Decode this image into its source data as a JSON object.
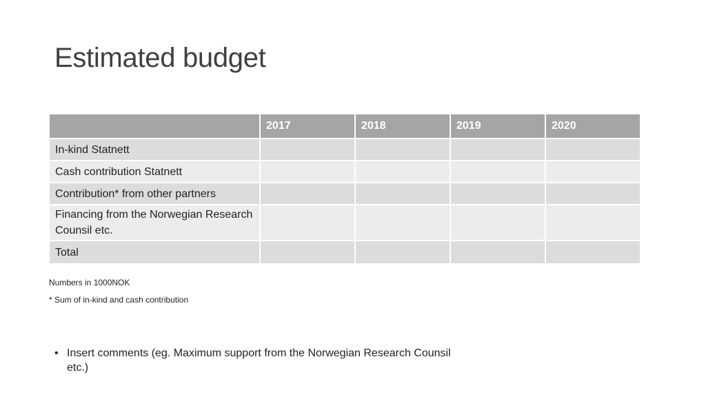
{
  "slide": {
    "title": "Estimated budget"
  },
  "table": {
    "corner": "",
    "years": [
      "2017",
      "2018",
      "2019",
      "2020"
    ],
    "rows": [
      {
        "label": "In-kind Statnett",
        "values": [
          "",
          "",
          "",
          ""
        ]
      },
      {
        "label": "Cash contribution Statnett",
        "values": [
          "",
          "",
          "",
          ""
        ]
      },
      {
        "label": "Contribution* from other partners",
        "values": [
          "",
          "",
          "",
          ""
        ]
      },
      {
        "label": "Financing from the Norwegian Research Counsil etc.",
        "values": [
          "",
          "",
          "",
          ""
        ]
      },
      {
        "label": "Total",
        "values": [
          "",
          "",
          "",
          ""
        ]
      }
    ]
  },
  "notes": {
    "units": "Numbers in 1000NOK",
    "footnote": "* Sum of in-kind and cash contribution"
  },
  "comments": {
    "bullet": "•",
    "items": [
      "Insert comments (eg. Maximum support from the Norwegian Research Counsil etc.)"
    ]
  }
}
